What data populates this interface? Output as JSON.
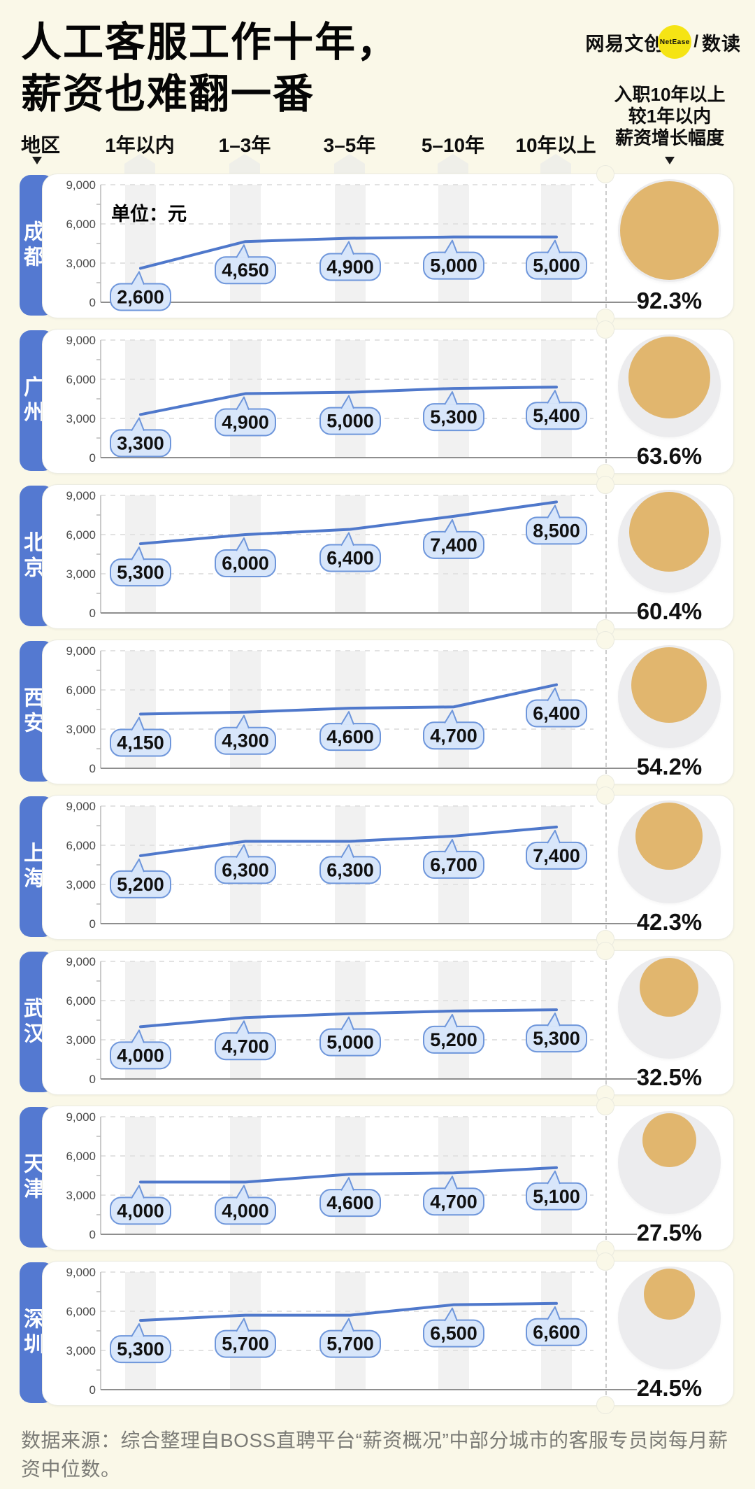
{
  "page": {
    "title_line1": "人工客服工作十年，",
    "title_line2": "薪资也难翻一番",
    "bg_color": "#FAF8E8"
  },
  "logo": {
    "brand": "网易文创",
    "badge": "NetEase",
    "divider": "/",
    "sub_brand": "数读",
    "badge_color": "#F5E414"
  },
  "header": {
    "region_label": "地区",
    "experience_labels": [
      "1年以内",
      "1–3年",
      "3–5年",
      "5–10年",
      "10年以上"
    ],
    "growth_header_line1": "入职10年以上",
    "growth_header_line2": "较1年以内",
    "growth_header_line3": "薪资增长幅度"
  },
  "chart_data": {
    "type": "line",
    "unit_label": "单位：元",
    "categories": [
      "1年以内",
      "1–3年",
      "3–5年",
      "5–10年",
      "10年以上"
    ],
    "y_ticks": [
      0,
      3000,
      6000,
      9000
    ],
    "y_tick_labels": [
      "9,000",
      "6,000",
      "3,000",
      "0"
    ],
    "ylim": [
      0,
      9000
    ],
    "grid": "dashed-horizontal",
    "series": [
      {
        "city": "成都",
        "values": [
          2600,
          4650,
          4900,
          5000,
          5000
        ],
        "values_display": [
          "2,600",
          "4,650",
          "4,900",
          "5,000",
          "5,000"
        ],
        "growth_pct": 92.3,
        "growth_display": "92.3%"
      },
      {
        "city": "广州",
        "values": [
          3300,
          4900,
          5000,
          5300,
          5400
        ],
        "values_display": [
          "3,300",
          "4,900",
          "5,000",
          "5,300",
          "5,400"
        ],
        "growth_pct": 63.6,
        "growth_display": "63.6%"
      },
      {
        "city": "北京",
        "values": [
          5300,
          6000,
          6400,
          7400,
          8500
        ],
        "values_display": [
          "5,300",
          "6,000",
          "6,400",
          "7,400",
          "8,500"
        ],
        "growth_pct": 60.4,
        "growth_display": "60.4%"
      },
      {
        "city": "西安",
        "values": [
          4150,
          4300,
          4600,
          4700,
          6400
        ],
        "values_display": [
          "4,150",
          "4,300",
          "4,600",
          "4,700",
          "6,400"
        ],
        "growth_pct": 54.2,
        "growth_display": "54.2%"
      },
      {
        "city": "上海",
        "values": [
          5200,
          6300,
          6300,
          6700,
          7400
        ],
        "values_display": [
          "5,200",
          "6,300",
          "6,300",
          "6,700",
          "7,400"
        ],
        "growth_pct": 42.3,
        "growth_display": "42.3%"
      },
      {
        "city": "武汉",
        "values": [
          4000,
          4700,
          5000,
          5200,
          5300
        ],
        "values_display": [
          "4,000",
          "4,700",
          "5,000",
          "5,200",
          "5,300"
        ],
        "growth_pct": 32.5,
        "growth_display": "32.5%"
      },
      {
        "city": "天津",
        "values": [
          4000,
          4000,
          4600,
          4700,
          5100
        ],
        "values_display": [
          "4,000",
          "4,000",
          "4,600",
          "4,700",
          "5,100"
        ],
        "growth_pct": 27.5,
        "growth_display": "27.5%"
      },
      {
        "city": "深圳",
        "values": [
          5300,
          5700,
          5700,
          6500,
          6600
        ],
        "values_display": [
          "5,300",
          "5,700",
          "5,700",
          "6,500",
          "6,600"
        ],
        "growth_pct": 24.5,
        "growth_display": "24.5%"
      }
    ]
  },
  "colors": {
    "line": "#4F78CB",
    "bubble_fill": "#D8E6FA",
    "bubble_border": "#6E96DB",
    "city_tab": "#5479D1",
    "growth_circle": "#E1B66E",
    "growth_circle_bg": "#ECECEE",
    "column_band": "#F1F1F1"
  },
  "footer": {
    "source_text": "数据来源：综合整理自BOSS直聘平台“薪资概况”中部分城市的客服专员岗每月薪资中位数。"
  }
}
